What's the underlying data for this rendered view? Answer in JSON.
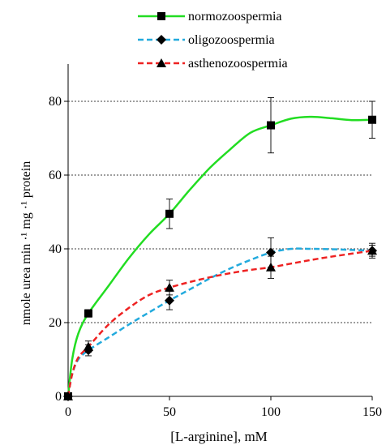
{
  "chart_data": {
    "type": "line",
    "xlabel": "[L-arginine], mM",
    "ylabel": "nmole urea min ·¹ mg ·¹ protein",
    "xlim": [
      0,
      150
    ],
    "ylim": [
      0,
      80
    ],
    "x_ticks": [
      0,
      50,
      100,
      150
    ],
    "y_ticks": [
      0,
      20,
      40,
      60,
      80
    ],
    "grid": "horizontal dashed at 20, 40, 60, 80",
    "legend_position": "top-right",
    "series": [
      {
        "name": "normozoospermia",
        "color": "#22dd22",
        "line_style": "solid",
        "marker": "square",
        "x": [
          0,
          10,
          50,
          100,
          150
        ],
        "y": [
          0,
          22.5,
          49.5,
          73.5,
          75
        ],
        "error": [
          0,
          1,
          4,
          7.5,
          5
        ],
        "curve_x": [
          0,
          2,
          5,
          10,
          20,
          30,
          40,
          50,
          60,
          70,
          80,
          90,
          100,
          110,
          120,
          130,
          140,
          150
        ],
        "curve_y": [
          0,
          10,
          17,
          22.5,
          30,
          37.5,
          44,
          49.5,
          56,
          62,
          67,
          71.5,
          73.5,
          75.3,
          75.8,
          75.4,
          74.9,
          75
        ]
      },
      {
        "name": "oligozoospermia",
        "color": "#22aadd",
        "line_style": "dashed",
        "marker": "diamond",
        "x": [
          0,
          10,
          50,
          100,
          150
        ],
        "y": [
          0,
          12.5,
          26,
          39,
          39.5
        ],
        "error": [
          0,
          1.5,
          2.5,
          4,
          1.5
        ],
        "curve_x": [
          0,
          2,
          5,
          10,
          20,
          30,
          40,
          50,
          60,
          70,
          80,
          90,
          100,
          110,
          120,
          130,
          140,
          150
        ],
        "curve_y": [
          0,
          6,
          10,
          12.5,
          16,
          19.5,
          22.8,
          26,
          29,
          32,
          34.7,
          37,
          39,
          40,
          40,
          39.9,
          39.7,
          39.5
        ]
      },
      {
        "name": "asthenozoospermia",
        "color": "#ee2222",
        "line_style": "dashed",
        "marker": "triangle",
        "x": [
          0,
          10,
          50,
          100,
          150
        ],
        "y": [
          0,
          13.5,
          29.5,
          35,
          39.5
        ],
        "error": [
          0,
          1.5,
          2,
          3,
          2
        ],
        "curve_x": [
          0,
          2,
          5,
          10,
          20,
          30,
          40,
          50,
          60,
          70,
          80,
          90,
          100,
          110,
          120,
          130,
          140,
          150
        ],
        "curve_y": [
          0,
          6,
          10.5,
          13.5,
          19.5,
          24,
          27.5,
          29.5,
          31,
          32.3,
          33.4,
          34.3,
          35,
          36,
          37,
          37.9,
          38.7,
          39.5
        ]
      }
    ]
  }
}
